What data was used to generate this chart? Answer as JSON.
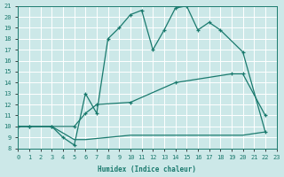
{
  "xlabel": "Humidex (Indice chaleur)",
  "xlim": [
    0,
    23
  ],
  "ylim": [
    8,
    21
  ],
  "xticks": [
    0,
    1,
    2,
    3,
    4,
    5,
    6,
    7,
    8,
    9,
    10,
    11,
    12,
    13,
    14,
    15,
    16,
    17,
    18,
    19,
    20,
    21,
    22,
    23
  ],
  "yticks": [
    8,
    9,
    10,
    11,
    12,
    13,
    14,
    15,
    16,
    17,
    18,
    19,
    20,
    21
  ],
  "bg_color": "#cce8e8",
  "line_color": "#1a7a6e",
  "grid_color": "#ffffff",
  "line1_x": [
    0,
    1,
    3,
    4,
    5,
    6,
    7,
    8,
    9,
    10,
    11,
    12,
    13,
    14,
    15,
    16,
    17,
    18,
    20,
    22
  ],
  "line1_y": [
    10.0,
    10.0,
    10.0,
    9.0,
    8.3,
    13.0,
    11.2,
    18.0,
    19.0,
    20.2,
    20.6,
    17.0,
    18.8,
    20.8,
    21.0,
    18.8,
    19.5,
    18.8,
    16.8,
    9.5
  ],
  "line2_x": [
    0,
    1,
    3,
    5,
    6,
    7,
    10,
    14,
    19,
    20,
    22
  ],
  "line2_y": [
    10.0,
    10.0,
    10.0,
    10.0,
    11.2,
    12.0,
    12.2,
    14.0,
    14.8,
    14.8,
    11.0
  ],
  "line3_x": [
    0,
    1,
    3,
    5,
    6,
    10,
    11,
    19,
    20,
    22
  ],
  "line3_y": [
    10.0,
    10.0,
    10.0,
    8.8,
    8.8,
    9.2,
    9.2,
    9.2,
    9.2,
    9.5
  ],
  "marker1": true,
  "marker2": true,
  "marker3": false
}
